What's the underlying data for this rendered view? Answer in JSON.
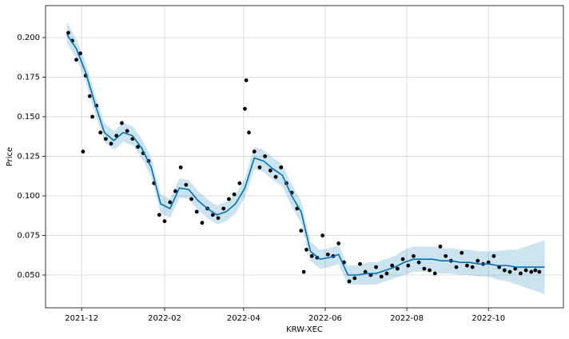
{
  "chart_data": {
    "type": "forecast",
    "xlabel": "KRW-XEC",
    "ylabel": "Price",
    "xlim": [
      "2021-11-04",
      "2022-11-26"
    ],
    "ylim": [
      0.0293,
      0.2202
    ],
    "xticks": [
      {
        "value": "2021-12-01",
        "label": "2021-12"
      },
      {
        "value": "2022-02-01",
        "label": "2022-02"
      },
      {
        "value": "2022-04-01",
        "label": "2022-04"
      },
      {
        "value": "2022-06-01",
        "label": "2022-06"
      },
      {
        "value": "2022-08-01",
        "label": "2022-08"
      },
      {
        "value": "2022-10-01",
        "label": "2022-10"
      }
    ],
    "yticks": [
      {
        "value": 0.05,
        "label": "0.050"
      },
      {
        "value": 0.075,
        "label": "0.075"
      },
      {
        "value": 0.1,
        "label": "0.100"
      },
      {
        "value": 0.125,
        "label": "0.125"
      },
      {
        "value": 0.15,
        "label": "0.150"
      },
      {
        "value": 0.175,
        "label": "0.175"
      },
      {
        "value": 0.2,
        "label": "0.200"
      }
    ],
    "grid": true,
    "observed": {
      "color": "#000000",
      "x": [
        "2021-11-21",
        "2021-11-24",
        "2021-11-27",
        "2021-11-30",
        "2021-12-02",
        "2021-12-04",
        "2021-12-07",
        "2021-12-09",
        "2021-12-12",
        "2021-12-15",
        "2021-12-19",
        "2021-12-23",
        "2021-12-27",
        "2021-12-31",
        "2022-01-04",
        "2022-01-08",
        "2022-01-12",
        "2022-01-16",
        "2022-01-20",
        "2022-01-24",
        "2022-01-28",
        "2022-02-01",
        "2022-02-05",
        "2022-02-09",
        "2022-02-13",
        "2022-02-17",
        "2022-02-21",
        "2022-02-25",
        "2022-03-01",
        "2022-03-05",
        "2022-03-09",
        "2022-03-13",
        "2022-03-17",
        "2022-03-21",
        "2022-03-25",
        "2022-03-29",
        "2022-04-02",
        "2022-04-03",
        "2022-04-05",
        "2022-04-09",
        "2022-04-13",
        "2022-04-17",
        "2022-04-21",
        "2022-04-25",
        "2022-04-29",
        "2022-05-03",
        "2022-05-07",
        "2022-05-11",
        "2022-05-14",
        "2022-05-16",
        "2022-05-18",
        "2022-05-22",
        "2022-05-26",
        "2022-05-30",
        "2022-06-03",
        "2022-06-07",
        "2022-06-11",
        "2022-06-15",
        "2022-06-19",
        "2022-06-23",
        "2022-06-27",
        "2022-07-01",
        "2022-07-05",
        "2022-07-09",
        "2022-07-13",
        "2022-07-17",
        "2022-07-21",
        "2022-07-25",
        "2022-07-29",
        "2022-08-02",
        "2022-08-06",
        "2022-08-10",
        "2022-08-14",
        "2022-08-18",
        "2022-08-22",
        "2022-08-26",
        "2022-08-30",
        "2022-09-03",
        "2022-09-07",
        "2022-09-11",
        "2022-09-15",
        "2022-09-19",
        "2022-09-23",
        "2022-09-27",
        "2022-10-01",
        "2022-10-05",
        "2022-10-09",
        "2022-10-13",
        "2022-10-17",
        "2022-10-21",
        "2022-10-25",
        "2022-10-29",
        "2022-11-02",
        "2022-11-05",
        "2022-11-08"
      ],
      "values": [
        0.203,
        0.198,
        0.186,
        0.19,
        0.128,
        0.176,
        0.163,
        0.15,
        0.157,
        0.14,
        0.136,
        0.133,
        0.138,
        0.146,
        0.141,
        0.136,
        0.131,
        0.127,
        0.122,
        0.108,
        0.088,
        0.084,
        0.096,
        0.103,
        0.118,
        0.107,
        0.098,
        0.09,
        0.083,
        0.092,
        0.088,
        0.086,
        0.092,
        0.098,
        0.101,
        0.108,
        0.155,
        0.173,
        0.14,
        0.128,
        0.118,
        0.125,
        0.116,
        0.112,
        0.118,
        0.108,
        0.102,
        0.092,
        0.078,
        0.052,
        0.066,
        0.062,
        0.061,
        0.075,
        0.063,
        0.062,
        0.07,
        0.058,
        0.046,
        0.048,
        0.057,
        0.052,
        0.05,
        0.055,
        0.049,
        0.051,
        0.056,
        0.054,
        0.06,
        0.056,
        0.062,
        0.058,
        0.054,
        0.053,
        0.051,
        0.068,
        0.062,
        0.059,
        0.055,
        0.064,
        0.056,
        0.055,
        0.059,
        0.057,
        0.058,
        0.062,
        0.055,
        0.053,
        0.052,
        0.054,
        0.051,
        0.053,
        0.052,
        0.053,
        0.052
      ]
    },
    "forecast": {
      "color": "#0072B2",
      "x": [
        "2021-11-20",
        "2021-11-27",
        "2021-12-04",
        "2021-12-11",
        "2021-12-18",
        "2021-12-25",
        "2022-01-01",
        "2022-01-08",
        "2022-01-15",
        "2022-01-22",
        "2022-01-29",
        "2022-02-05",
        "2022-02-12",
        "2022-02-19",
        "2022-02-26",
        "2022-03-05",
        "2022-03-12",
        "2022-03-19",
        "2022-03-26",
        "2022-04-02",
        "2022-04-09",
        "2022-04-16",
        "2022-04-23",
        "2022-04-30",
        "2022-05-07",
        "2022-05-14",
        "2022-05-21",
        "2022-05-28",
        "2022-06-04",
        "2022-06-11",
        "2022-06-18",
        "2022-06-25",
        "2022-07-02",
        "2022-07-09",
        "2022-07-16",
        "2022-07-23",
        "2022-07-30",
        "2022-08-06",
        "2022-08-13",
        "2022-08-20",
        "2022-08-27",
        "2022-09-03",
        "2022-09-10",
        "2022-09-17",
        "2022-09-24",
        "2022-10-01",
        "2022-10-08",
        "2022-10-15",
        "2022-10-22",
        "2022-10-29",
        "2022-11-05",
        "2022-11-12"
      ],
      "values": [
        0.202,
        0.193,
        0.178,
        0.158,
        0.14,
        0.135,
        0.14,
        0.138,
        0.13,
        0.118,
        0.095,
        0.092,
        0.105,
        0.104,
        0.097,
        0.092,
        0.088,
        0.09,
        0.095,
        0.105,
        0.124,
        0.122,
        0.117,
        0.113,
        0.1,
        0.09,
        0.065,
        0.06,
        0.061,
        0.063,
        0.05,
        0.05,
        0.051,
        0.051,
        0.053,
        0.055,
        0.058,
        0.06,
        0.06,
        0.06,
        0.059,
        0.059,
        0.058,
        0.058,
        0.057,
        0.057,
        0.056,
        0.056,
        0.055,
        0.055,
        0.055,
        0.055
      ],
      "lower": [
        0.196,
        0.187,
        0.172,
        0.152,
        0.134,
        0.129,
        0.134,
        0.132,
        0.124,
        0.112,
        0.089,
        0.086,
        0.099,
        0.098,
        0.091,
        0.086,
        0.082,
        0.084,
        0.089,
        0.099,
        0.117,
        0.115,
        0.11,
        0.106,
        0.093,
        0.083,
        0.059,
        0.054,
        0.055,
        0.057,
        0.044,
        0.044,
        0.044,
        0.044,
        0.046,
        0.048,
        0.05,
        0.052,
        0.052,
        0.052,
        0.051,
        0.051,
        0.05,
        0.05,
        0.049,
        0.049,
        0.047,
        0.046,
        0.044,
        0.042,
        0.04,
        0.038
      ],
      "upper": [
        0.21,
        0.199,
        0.184,
        0.164,
        0.146,
        0.141,
        0.146,
        0.144,
        0.136,
        0.124,
        0.101,
        0.098,
        0.111,
        0.11,
        0.103,
        0.098,
        0.094,
        0.096,
        0.101,
        0.111,
        0.131,
        0.129,
        0.124,
        0.12,
        0.107,
        0.097,
        0.071,
        0.066,
        0.067,
        0.069,
        0.056,
        0.056,
        0.058,
        0.058,
        0.06,
        0.062,
        0.066,
        0.068,
        0.068,
        0.068,
        0.067,
        0.067,
        0.066,
        0.066,
        0.065,
        0.065,
        0.065,
        0.066,
        0.066,
        0.068,
        0.07,
        0.072
      ]
    }
  }
}
